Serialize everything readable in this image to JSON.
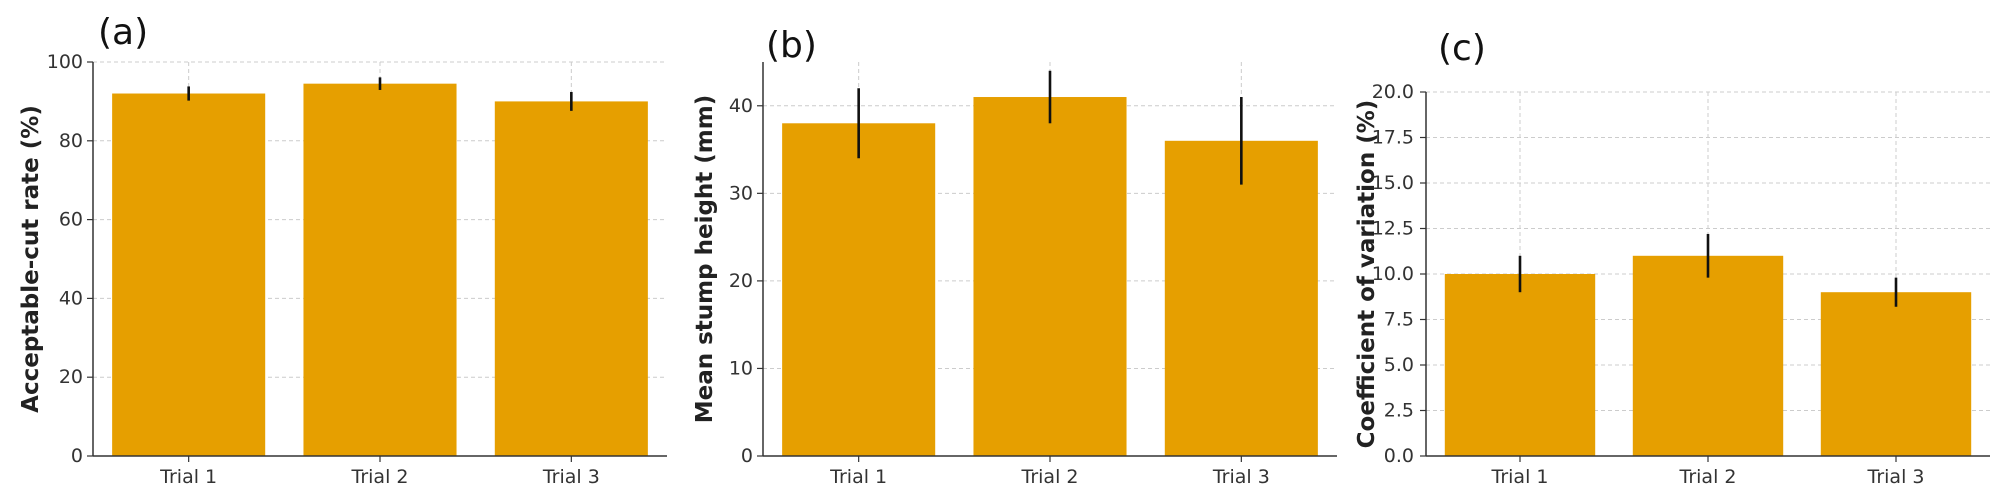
{
  "colors": {
    "bar": "#E69F00",
    "error_bar": "#111111",
    "grid": "#cccccc",
    "axis": "#333333"
  },
  "chart_data": [
    {
      "type": "bar",
      "panel_label": "(a)",
      "categories": [
        "Trial 1",
        "Trial 2",
        "Trial 3"
      ],
      "values": [
        92,
        94.5,
        90
      ],
      "errors": [
        1.8,
        1.6,
        2.4
      ],
      "title": "",
      "xlabel": "",
      "ylabel": "Acceptable-cut rate (%)",
      "ylim": [
        0,
        100
      ],
      "yticks": [
        0,
        20,
        40,
        60,
        80,
        100
      ],
      "ytick_labels": [
        "0",
        "20",
        "40",
        "60",
        "80",
        "100"
      ],
      "grid": true
    },
    {
      "type": "bar",
      "panel_label": "(b)",
      "categories": [
        "Trial 1",
        "Trial 2",
        "Trial 3"
      ],
      "values": [
        38,
        41,
        36
      ],
      "errors": [
        4,
        3,
        5
      ],
      "title": "",
      "xlabel": "",
      "ylabel": "Mean stump height (mm)",
      "ylim": [
        0,
        45
      ],
      "yticks": [
        0,
        10,
        20,
        30,
        40
      ],
      "ytick_labels": [
        "0",
        "10",
        "20",
        "30",
        "40"
      ],
      "grid": true
    },
    {
      "type": "bar",
      "panel_label": "(c)",
      "categories": [
        "Trial 1",
        "Trial 2",
        "Trial 3"
      ],
      "values": [
        10,
        11,
        9
      ],
      "errors": [
        1,
        1.2,
        0.8
      ],
      "title": "",
      "xlabel": "",
      "ylabel": "Coefficient of variation (%)",
      "ylim": [
        0,
        20
      ],
      "yticks": [
        0,
        2.5,
        5,
        7.5,
        10,
        12.5,
        15,
        17.5,
        20
      ],
      "ytick_labels": [
        "0.0",
        "2.5",
        "5.0",
        "7.5",
        "10.0",
        "12.5",
        "15.0",
        "17.5",
        "20.0"
      ],
      "grid": true
    }
  ]
}
